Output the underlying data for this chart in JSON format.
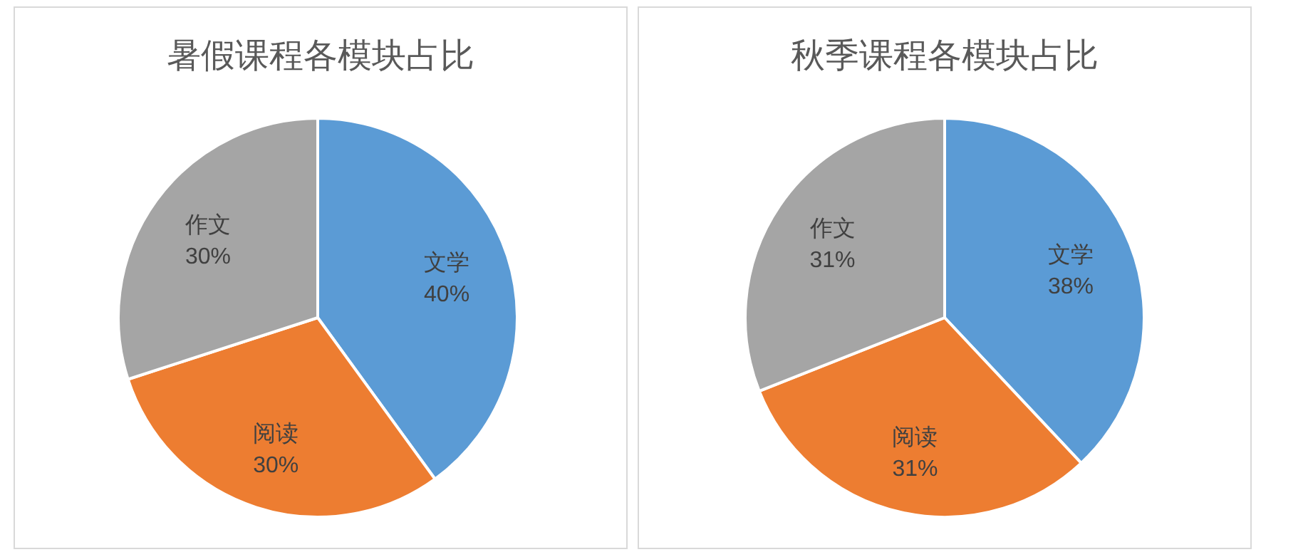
{
  "chart_data": [
    {
      "type": "pie",
      "title": "暑假课程各模块占比",
      "categories": [
        "文学",
        "阅读",
        "作文"
      ],
      "values": [
        40,
        30,
        30
      ],
      "colors": [
        "#5b9bd5",
        "#ed7d31",
        "#a5a5a5"
      ],
      "value_labels": [
        "40%",
        "30%",
        "30%"
      ]
    },
    {
      "type": "pie",
      "title": "秋季课程各模块占比",
      "categories": [
        "文学",
        "阅读",
        "作文"
      ],
      "values": [
        38,
        31,
        31
      ],
      "colors": [
        "#5b9bd5",
        "#ed7d31",
        "#a5a5a5"
      ],
      "value_labels": [
        "38%",
        "31%",
        "31%"
      ]
    }
  ]
}
